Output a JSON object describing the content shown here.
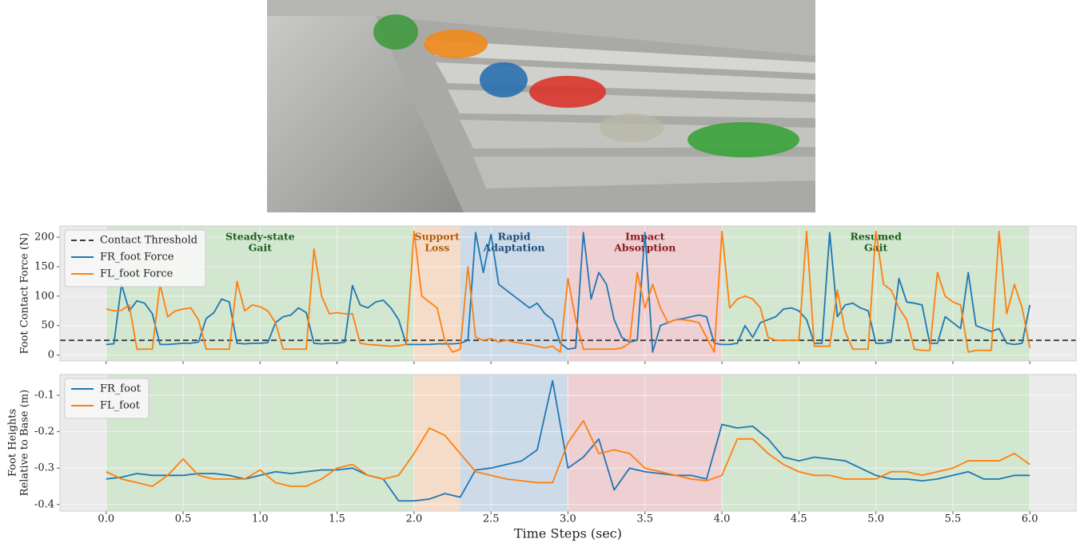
{
  "chart_data": [
    {
      "type": "line",
      "ylabel": [
        "Foot Contact Force (N)"
      ],
      "xlim": [
        -0.3,
        6.3
      ],
      "ylim": [
        -10,
        219
      ],
      "xticks": [
        0,
        0.5,
        1,
        1.5,
        2,
        2.5,
        3,
        3.5,
        4,
        4.5,
        5,
        5.5,
        6
      ],
      "xtick_labels": false,
      "yticks": [
        0,
        50,
        100,
        150,
        200
      ],
      "grid": true,
      "background": "#ebebeb",
      "legend": "upper left",
      "regions": [
        {
          "x0": 0,
          "x1": 2,
          "color": "#d3e6cf",
          "label": [
            "Steady-state",
            "Gait"
          ],
          "label_color": "#1e5e1e"
        },
        {
          "x0": 2,
          "x1": 2.3,
          "color": "#f5dcc8",
          "label": [
            "Support",
            "Loss"
          ],
          "label_color": "#b35c0c"
        },
        {
          "x0": 2.3,
          "x1": 3,
          "color": "#cddbe8",
          "label": [
            "Rapid",
            "Adaptation"
          ],
          "label_color": "#1f4e79"
        },
        {
          "x0": 3,
          "x1": 4,
          "color": "#eed0d3",
          "label": [
            "Impact",
            "Absorption"
          ],
          "label_color": "#8b1a1a"
        },
        {
          "x0": 4,
          "x1": 6,
          "color": "#d3e6cf",
          "label": [
            "Resumed",
            "Gait"
          ],
          "label_color": "#1e5e1e"
        }
      ],
      "hlines": [
        {
          "name": "Contact Threshold",
          "value": 25,
          "color": "#3a3a3a",
          "dash": true
        }
      ],
      "x": [
        0,
        0.05,
        0.1,
        0.15,
        0.2,
        0.25,
        0.3,
        0.35,
        0.4,
        0.45,
        0.5,
        0.55,
        0.6,
        0.65,
        0.7,
        0.75,
        0.8,
        0.85,
        0.9,
        0.95,
        1,
        1.05,
        1.1,
        1.15,
        1.2,
        1.25,
        1.3,
        1.35,
        1.4,
        1.45,
        1.5,
        1.55,
        1.6,
        1.65,
        1.7,
        1.75,
        1.8,
        1.85,
        1.9,
        1.95,
        2,
        2.05,
        2.1,
        2.15,
        2.2,
        2.25,
        2.3,
        2.35,
        2.4,
        2.45,
        2.5,
        2.55,
        2.6,
        2.65,
        2.7,
        2.75,
        2.8,
        2.85,
        2.9,
        2.95,
        3,
        3.05,
        3.1,
        3.15,
        3.2,
        3.25,
        3.3,
        3.35,
        3.4,
        3.45,
        3.5,
        3.55,
        3.6,
        3.65,
        3.7,
        3.75,
        3.8,
        3.85,
        3.9,
        3.95,
        4,
        4.05,
        4.1,
        4.15,
        4.2,
        4.25,
        4.3,
        4.35,
        4.4,
        4.45,
        4.5,
        4.55,
        4.6,
        4.65,
        4.7,
        4.75,
        4.8,
        4.85,
        4.9,
        4.95,
        5,
        5.05,
        5.1,
        5.15,
        5.2,
        5.25,
        5.3,
        5.35,
        5.4,
        5.45,
        5.5,
        5.55,
        5.6,
        5.65,
        5.7,
        5.75,
        5.8,
        5.85,
        5.9,
        5.95,
        6
      ],
      "series": [
        {
          "name": "FR_foot Force",
          "color": "#1f77b4",
          "values": [
            18,
            19,
            120,
            75,
            92,
            88,
            70,
            18,
            18,
            19,
            20,
            20,
            22,
            62,
            72,
            95,
            90,
            20,
            19,
            20,
            20,
            21,
            55,
            65,
            68,
            80,
            72,
            20,
            19,
            20,
            20,
            22,
            118,
            85,
            80,
            90,
            93,
            80,
            60,
            18,
            18,
            18,
            18,
            19,
            19,
            19,
            20,
            25,
            208,
            140,
            205,
            120,
            110,
            100,
            90,
            80,
            88,
            70,
            60,
            20,
            10,
            12,
            208,
            95,
            140,
            120,
            60,
            30,
            22,
            25,
            208,
            5,
            50,
            55,
            60,
            62,
            65,
            68,
            65,
            20,
            18,
            18,
            20,
            50,
            30,
            55,
            60,
            65,
            78,
            80,
            75,
            60,
            20,
            20,
            208,
            65,
            85,
            88,
            80,
            75,
            20,
            20,
            22,
            130,
            90,
            88,
            85,
            20,
            20,
            65,
            55,
            45,
            140,
            50,
            45,
            40,
            45,
            20,
            18,
            20,
            85
          ]
        },
        {
          "name": "FL_foot Force",
          "color": "#ff7f0e",
          "values": [
            78,
            75,
            76,
            85,
            10,
            10,
            10,
            120,
            65,
            75,
            78,
            80,
            60,
            10,
            10,
            10,
            10,
            125,
            75,
            85,
            82,
            75,
            55,
            10,
            10,
            10,
            10,
            180,
            100,
            70,
            72,
            70,
            70,
            20,
            18,
            17,
            16,
            15,
            16,
            18,
            210,
            100,
            90,
            80,
            25,
            5,
            10,
            150,
            30,
            25,
            28,
            22,
            25,
            22,
            20,
            18,
            15,
            12,
            15,
            5,
            130,
            60,
            10,
            10,
            10,
            10,
            10,
            12,
            20,
            140,
            80,
            120,
            80,
            55,
            60,
            60,
            58,
            55,
            30,
            5,
            210,
            80,
            95,
            100,
            95,
            80,
            30,
            25,
            25,
            25,
            25,
            210,
            15,
            15,
            15,
            110,
            40,
            10,
            10,
            10,
            210,
            120,
            110,
            80,
            60,
            10,
            8,
            8,
            140,
            100,
            90,
            85,
            5,
            8,
            8,
            8,
            210,
            70,
            120,
            80,
            12
          ]
        }
      ]
    },
    {
      "type": "line",
      "ylabel": [
        "Foot Heights",
        "Relative to Base (m)"
      ],
      "xlabel": "Time Steps (sec)",
      "xlim": [
        -0.3,
        6.3
      ],
      "ylim": [
        -0.418,
        -0.043
      ],
      "xticks": [
        {
          "value": 0,
          "label": "0.0"
        },
        0.5,
        {
          "value": 1,
          "label": "1.0"
        },
        1.5,
        {
          "value": 2,
          "label": "2.0"
        },
        2.5,
        {
          "value": 3,
          "label": "3.0"
        },
        3.5,
        {
          "value": 4,
          "label": "4.0"
        },
        4.5,
        {
          "value": 5,
          "label": "5.0"
        },
        5.5,
        {
          "value": 6,
          "label": "6.0"
        }
      ],
      "xtick_labels": true,
      "yticks": [
        -0.1,
        -0.2,
        -0.3,
        -0.4
      ],
      "grid": true,
      "background": "#ebebeb",
      "legend": "upper left",
      "regions": [
        {
          "x0": 0,
          "x1": 2,
          "color": "#d3e6cf"
        },
        {
          "x0": 2,
          "x1": 2.3,
          "color": "#f5dcc8"
        },
        {
          "x0": 2.3,
          "x1": 3,
          "color": "#cddbe8"
        },
        {
          "x0": 3,
          "x1": 4,
          "color": "#eed0d3"
        },
        {
          "x0": 4,
          "x1": 6,
          "color": "#d3e6cf"
        }
      ],
      "x": [
        0,
        0.1,
        0.2,
        0.3,
        0.4,
        0.5,
        0.6,
        0.7,
        0.8,
        0.9,
        1,
        1.1,
        1.2,
        1.3,
        1.4,
        1.5,
        1.6,
        1.7,
        1.8,
        1.9,
        2,
        2.1,
        2.2,
        2.3,
        2.4,
        2.5,
        2.6,
        2.7,
        2.8,
        2.9,
        3,
        3.1,
        3.2,
        3.3,
        3.4,
        3.5,
        3.6,
        3.7,
        3.8,
        3.9,
        4,
        4.1,
        4.2,
        4.3,
        4.4,
        4.5,
        4.6,
        4.7,
        4.8,
        4.9,
        5,
        5.1,
        5.2,
        5.3,
        5.4,
        5.5,
        5.6,
        5.7,
        5.8,
        5.9,
        6
      ],
      "series": [
        {
          "name": "FR_foot",
          "color": "#1f77b4",
          "values": [
            -0.33,
            -0.325,
            -0.315,
            -0.32,
            -0.32,
            -0.32,
            -0.315,
            -0.315,
            -0.32,
            -0.33,
            -0.32,
            -0.31,
            -0.315,
            -0.31,
            -0.305,
            -0.305,
            -0.3,
            -0.32,
            -0.33,
            -0.39,
            -0.39,
            -0.385,
            -0.37,
            -0.38,
            -0.305,
            -0.3,
            -0.29,
            -0.28,
            -0.25,
            -0.06,
            -0.3,
            -0.27,
            -0.22,
            -0.36,
            -0.3,
            -0.31,
            -0.315,
            -0.32,
            -0.32,
            -0.33,
            -0.18,
            -0.19,
            -0.185,
            -0.22,
            -0.27,
            -0.28,
            -0.27,
            -0.275,
            -0.28,
            -0.3,
            -0.32,
            -0.33,
            -0.33,
            -0.335,
            -0.33,
            -0.32,
            -0.31,
            -0.33,
            -0.33,
            -0.32,
            -0.32
          ]
        },
        {
          "name": "FL_foot",
          "color": "#ff7f0e",
          "values": [
            -0.31,
            -0.33,
            -0.34,
            -0.35,
            -0.32,
            -0.275,
            -0.32,
            -0.33,
            -0.33,
            -0.33,
            -0.305,
            -0.34,
            -0.35,
            -0.35,
            -0.33,
            -0.3,
            -0.29,
            -0.32,
            -0.33,
            -0.32,
            -0.26,
            -0.19,
            -0.21,
            -0.26,
            -0.31,
            -0.32,
            -0.33,
            -0.335,
            -0.34,
            -0.34,
            -0.23,
            -0.17,
            -0.26,
            -0.25,
            -0.26,
            -0.3,
            -0.31,
            -0.32,
            -0.33,
            -0.335,
            -0.32,
            -0.22,
            -0.22,
            -0.26,
            -0.29,
            -0.31,
            -0.32,
            -0.32,
            -0.33,
            -0.33,
            -0.33,
            -0.31,
            -0.31,
            -0.32,
            -0.31,
            -0.3,
            -0.28,
            -0.28,
            -0.28,
            -0.26,
            -0.29
          ]
        }
      ]
    }
  ]
}
